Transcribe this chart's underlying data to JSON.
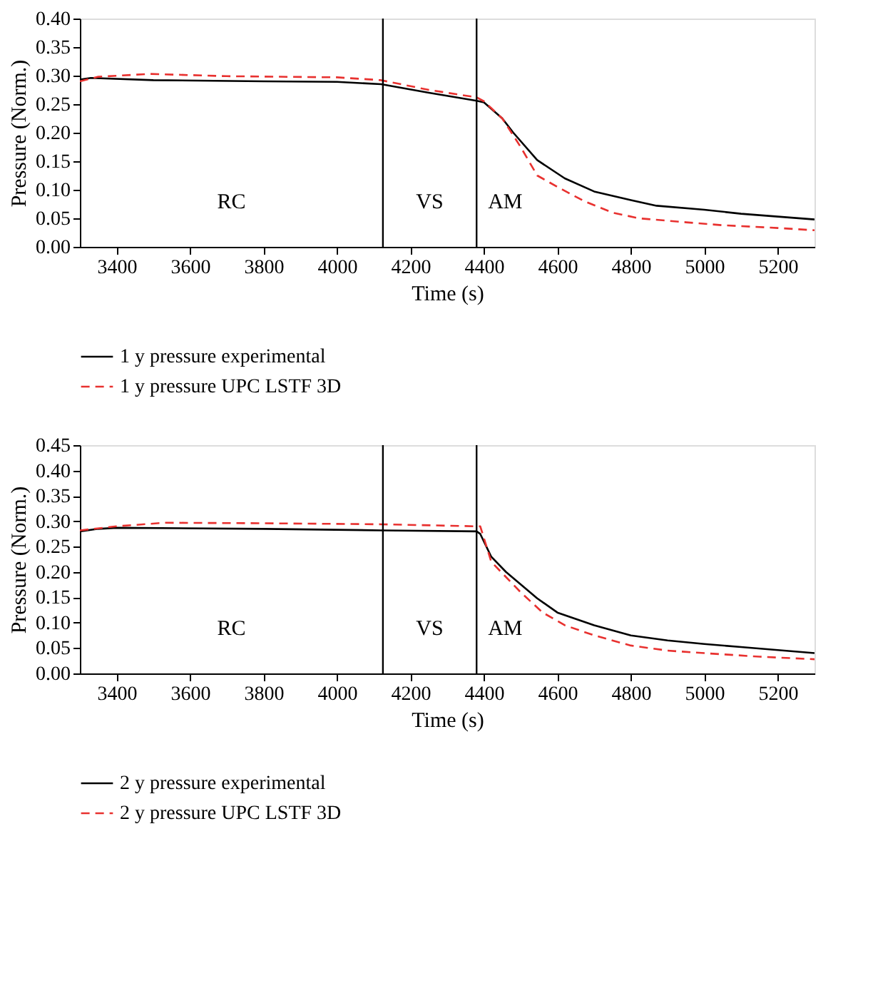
{
  "chart_data": [
    {
      "type": "line",
      "xlabel": "Time (s)",
      "ylabel": "Pressure (Norm.)",
      "xlim": [
        3300,
        5300
      ],
      "xticks": [
        3400,
        3600,
        3800,
        4000,
        4200,
        4400,
        4600,
        4800,
        5000,
        5200
      ],
      "ylim": [
        0,
        0.4
      ],
      "yticks": [
        {
          "value": 0,
          "label": "0.00"
        },
        0.05,
        {
          "value": 0.1,
          "label": "0.10"
        },
        0.15,
        {
          "value": 0.2,
          "label": "0.20"
        },
        0.25,
        {
          "value": 0.3,
          "label": "0.30"
        },
        0.35,
        {
          "value": 0.4,
          "label": "0.40"
        }
      ],
      "grid": false,
      "legend": "bottom",
      "series": [
        {
          "name": "1 y pressure experimental",
          "color": "#000000",
          "line_style": "solid",
          "x": [
            3300,
            3330,
            3500,
            3800,
            4000,
            4120,
            4250,
            4380,
            4400,
            4450,
            4480,
            4545,
            4620,
            4700,
            4800,
            4870,
            5000,
            5100,
            5300
          ],
          "values": [
            0.293,
            0.296,
            0.292,
            0.29,
            0.289,
            0.285,
            0.27,
            0.256,
            0.253,
            0.225,
            0.2,
            0.152,
            0.12,
            0.097,
            0.082,
            0.072,
            0.065,
            0.058,
            0.048
          ]
        },
        {
          "name": "1 y pressure UPC LSTF 3D",
          "color": "#e8312f",
          "line_style": "dashed",
          "x": [
            3300,
            3350,
            3490,
            3700,
            4000,
            4120,
            4250,
            4380,
            4400,
            4450,
            4500,
            4545,
            4600,
            4673,
            4750,
            4822,
            4950,
            5047,
            5200,
            5300
          ],
          "values": [
            0.29,
            0.298,
            0.303,
            0.299,
            0.297,
            0.292,
            0.275,
            0.262,
            0.255,
            0.225,
            0.175,
            0.125,
            0.105,
            0.08,
            0.06,
            0.05,
            0.043,
            0.038,
            0.033,
            0.029
          ]
        }
      ],
      "ref_lines": [
        {
          "axis": "x",
          "value": 4125,
          "color": "#000000"
        },
        {
          "axis": "x",
          "value": 4380,
          "color": "#000000"
        }
      ],
      "annotations": [
        "RC",
        "VS",
        "AM"
      ]
    },
    {
      "type": "line",
      "xlabel": "Time (s)",
      "ylabel": "Pressure (Norm.)",
      "xlim": [
        3300,
        5300
      ],
      "xticks": [
        3400,
        3600,
        3800,
        4000,
        4200,
        4400,
        4600,
        4800,
        5000,
        5200
      ],
      "ylim": [
        0,
        0.45
      ],
      "yticks": [
        {
          "value": 0,
          "label": "0.00"
        },
        0.05,
        {
          "value": 0.1,
          "label": "0.10"
        },
        0.15,
        {
          "value": 0.2,
          "label": "0.20"
        },
        0.25,
        {
          "value": 0.3,
          "label": "0.30"
        },
        0.35,
        {
          "value": 0.4,
          "label": "0.40"
        },
        0.45
      ],
      "grid": false,
      "legend": "bottom",
      "series": [
        {
          "name": "2 y pressure experimental",
          "color": "#000000",
          "line_style": "solid",
          "x": [
            3300,
            3350,
            3400,
            3800,
            4120,
            4380,
            4390,
            4420,
            4460,
            4545,
            4600,
            4700,
            4800,
            4900,
            5000,
            5100,
            5300
          ],
          "values": [
            0.28,
            0.285,
            0.287,
            0.285,
            0.282,
            0.28,
            0.275,
            0.23,
            0.2,
            0.148,
            0.12,
            0.095,
            0.075,
            0.065,
            0.058,
            0.052,
            0.04
          ]
        },
        {
          "name": "2 y pressure UPC LSTF 3D",
          "color": "#e8312f",
          "line_style": "dashed",
          "x": [
            3300,
            3400,
            3530,
            3800,
            4120,
            4380,
            4390,
            4420,
            4500,
            4560,
            4620,
            4700,
            4800,
            4900,
            5000,
            5150,
            5300
          ],
          "values": [
            0.282,
            0.29,
            0.297,
            0.296,
            0.294,
            0.29,
            0.29,
            0.22,
            0.16,
            0.12,
            0.095,
            0.075,
            0.055,
            0.045,
            0.04,
            0.033,
            0.028
          ]
        }
      ],
      "ref_lines": [
        {
          "axis": "x",
          "value": 4125,
          "color": "#000000"
        },
        {
          "axis": "x",
          "value": 4380,
          "color": "#000000"
        }
      ],
      "annotations": [
        "RC",
        "VS",
        "AM"
      ]
    }
  ]
}
